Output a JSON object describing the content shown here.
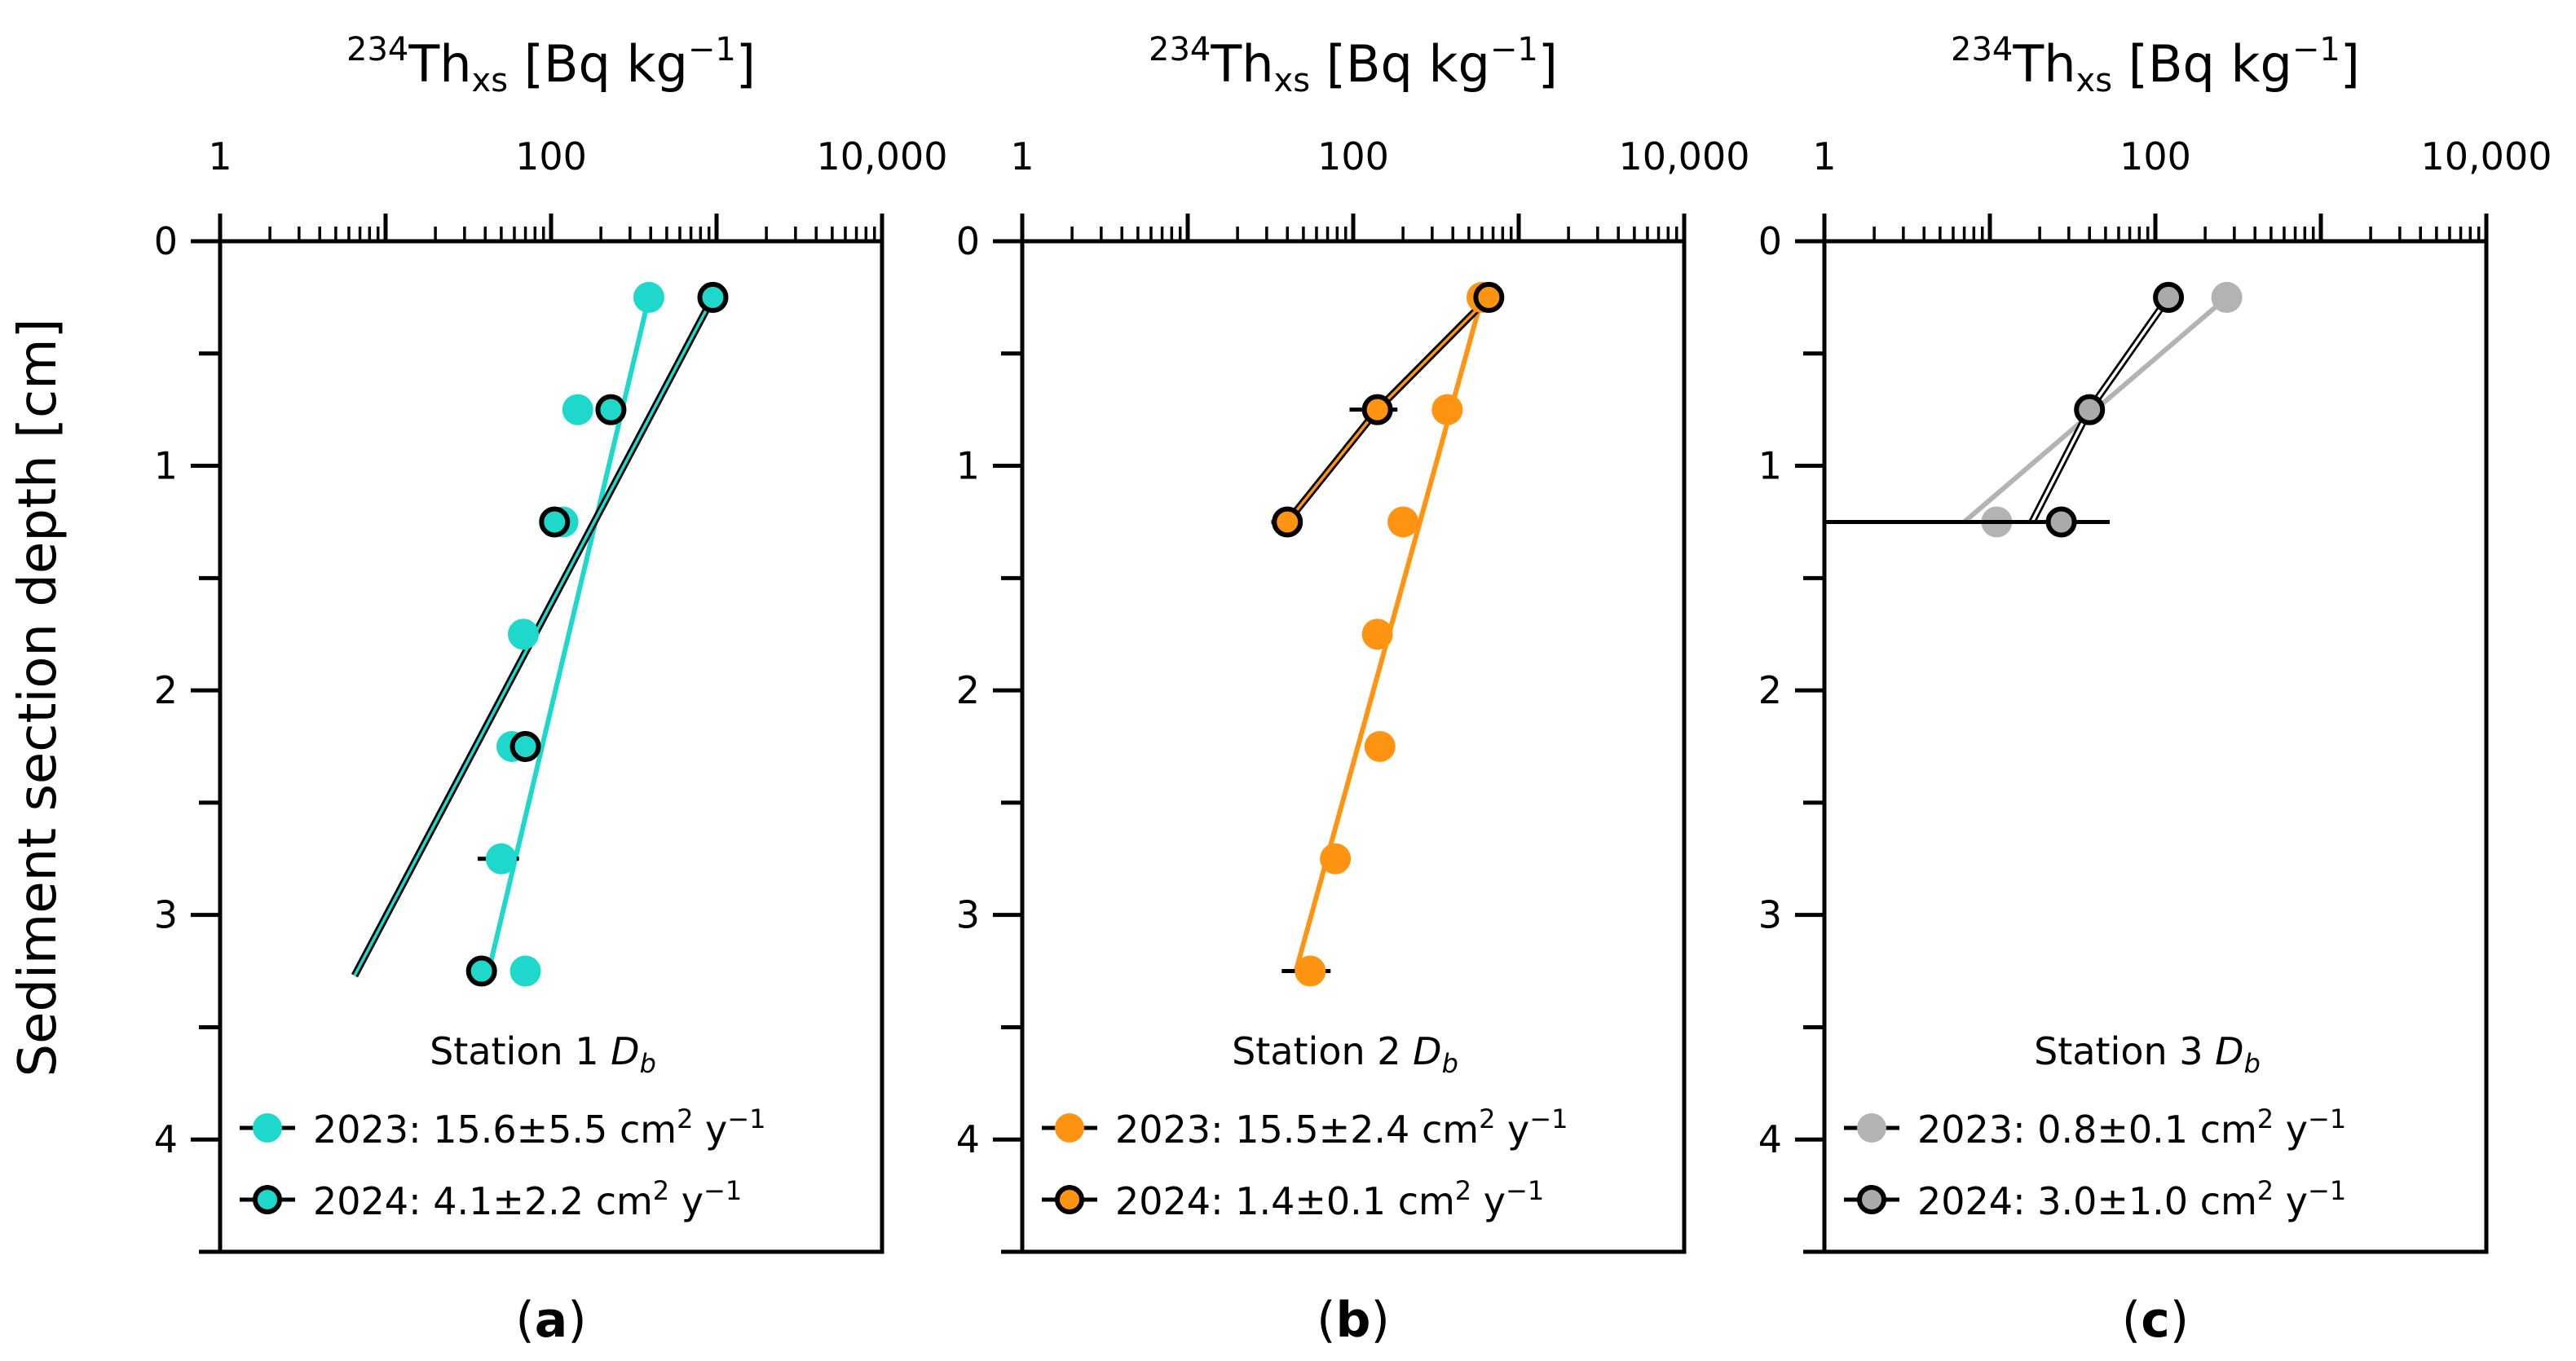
{
  "figure": {
    "ylabel": "Sediment section depth [cm]",
    "xlabel": {
      "iso": "234",
      "symbol": "Th",
      "sub": "xs",
      "unit_a": " [Bq kg",
      "unit_exp": "−1",
      "unit_b": "]"
    },
    "panel_labels": [
      {
        "open": "(",
        "letter": "a",
        "close": ")"
      },
      {
        "open": "(",
        "letter": "b",
        "close": ")"
      },
      {
        "open": "(",
        "letter": "c",
        "close": ")"
      }
    ]
  },
  "chart_data": [
    {
      "type": "scatter",
      "panel": "a",
      "x_scale": "log",
      "xlim": [
        1,
        10000
      ],
      "ylim": [
        4.5,
        0
      ],
      "x_tick_labels": [
        "1",
        "100",
        "10,000"
      ],
      "x_tick_values": [
        1,
        100,
        10000
      ],
      "y_tick_labels": [
        "0",
        "1",
        "2",
        "3",
        "4"
      ],
      "y_tick_values": [
        0,
        1,
        2,
        3,
        4
      ],
      "legend": {
        "title": "Station 1",
        "title_sym": "D",
        "title_sub": "b",
        "position": "lower center"
      },
      "series": [
        {
          "name": "2023",
          "label_value": "15.6±5.5",
          "label_unit": "cm",
          "label_unit_exp": "2",
          "label_unit2": "y",
          "label_unit2_exp": "−1",
          "color": "#1ed8cc",
          "edge": "#1ed8cc",
          "line_color": "#1ed8cc",
          "line_edge": "#1ed8cc",
          "points": [
            {
              "x": 390,
              "y": 0.25,
              "xerr": 0
            },
            {
              "x": 145,
              "y": 0.75,
              "xerr": 0
            },
            {
              "x": 118,
              "y": 1.25,
              "xerr": 0
            },
            {
              "x": 68,
              "y": 1.75,
              "xerr": 12
            },
            {
              "x": 58,
              "y": 2.25,
              "xerr": 0
            },
            {
              "x": 50,
              "y": 2.75,
              "xerr": 14
            },
            {
              "x": 70,
              "y": 3.25,
              "xerr": 0
            }
          ],
          "fit": [
            {
              "x": 390,
              "y": 0.25
            },
            {
              "x": 42,
              "y": 3.25
            }
          ]
        },
        {
          "name": "2024",
          "label_value": "4.1±2.2",
          "label_unit": "cm",
          "label_unit_exp": "2",
          "label_unit2": "y",
          "label_unit2_exp": "−1",
          "color": "#1ed8cc",
          "edge": "#000000",
          "line_color": "#1ed8cc",
          "line_edge": "#000000",
          "points": [
            {
              "x": 950,
              "y": 0.25,
              "xerr": 0
            },
            {
              "x": 230,
              "y": 0.75,
              "xerr": 0
            },
            {
              "x": 105,
              "y": 1.25,
              "xerr": 0
            },
            {
              "x": 70,
              "y": 2.25,
              "xerr": 0
            },
            {
              "x": 38,
              "y": 3.25,
              "xerr": 6
            }
          ],
          "fit": [
            {
              "x": 950,
              "y": 0.25
            },
            {
              "x": 6.5,
              "y": 3.27
            }
          ]
        }
      ]
    },
    {
      "type": "scatter",
      "panel": "b",
      "x_scale": "log",
      "xlim": [
        1,
        10000
      ],
      "ylim": [
        4.5,
        0
      ],
      "x_tick_labels": [
        "1",
        "100",
        "10,000"
      ],
      "x_tick_values": [
        1,
        100,
        10000
      ],
      "y_tick_labels": [
        "0",
        "1",
        "2",
        "3",
        "4"
      ],
      "y_tick_values": [
        0,
        1,
        2,
        3,
        4
      ],
      "legend": {
        "title": "Station 2",
        "title_sym": "D",
        "title_sub": "b",
        "position": "lower center"
      },
      "series": [
        {
          "name": "2023",
          "label_value": "15.5±2.4",
          "label_unit": "cm",
          "label_unit_exp": "2",
          "label_unit2": "y",
          "label_unit2_exp": "−1",
          "color": "#ff9412",
          "edge": "#ff9412",
          "line_color": "#ff9412",
          "line_edge": "#ff9412",
          "points": [
            {
              "x": 600,
              "y": 0.25,
              "xerr": 0
            },
            {
              "x": 370,
              "y": 0.75,
              "xerr": 0
            },
            {
              "x": 200,
              "y": 1.25,
              "xerr": 0
            },
            {
              "x": 140,
              "y": 1.75,
              "xerr": 0
            },
            {
              "x": 145,
              "y": 2.25,
              "xerr": 15
            },
            {
              "x": 78,
              "y": 2.75,
              "xerr": 10
            },
            {
              "x": 55,
              "y": 3.25,
              "xerr": 18
            }
          ],
          "fit": [
            {
              "x": 600,
              "y": 0.25
            },
            {
              "x": 45,
              "y": 3.25
            }
          ]
        },
        {
          "name": "2024",
          "label_value": "1.4±0.1",
          "label_unit": "cm",
          "label_unit_exp": "2",
          "label_unit2": "y",
          "label_unit2_exp": "−1",
          "color": "#ff9412",
          "edge": "#000000",
          "line_color": "#ff9412",
          "line_edge": "#000000",
          "points": [
            {
              "x": 660,
              "y": 0.25,
              "xerr": 0
            },
            {
              "x": 140,
              "y": 0.75,
              "xerr": 45
            },
            {
              "x": 40,
              "y": 1.25,
              "xerr": 8
            }
          ],
          "fit": [
            {
              "x": 660,
              "y": 0.25
            },
            {
              "x": 140,
              "y": 0.75
            },
            {
              "x": 40,
              "y": 1.25
            }
          ]
        }
      ]
    },
    {
      "type": "scatter",
      "panel": "c",
      "x_scale": "log",
      "xlim": [
        1,
        10000
      ],
      "ylim": [
        4.5,
        0
      ],
      "x_tick_labels": [
        "1",
        "100",
        "10,000"
      ],
      "x_tick_values": [
        1,
        100,
        10000
      ],
      "y_tick_labels": [
        "0",
        "1",
        "2",
        "3",
        "4"
      ],
      "y_tick_values": [
        0,
        1,
        2,
        3,
        4
      ],
      "legend": {
        "title": "Station 3",
        "title_sym": "D",
        "title_sub": "b",
        "position": "lower center"
      },
      "series": [
        {
          "name": "2023",
          "label_value": "0.8±0.1",
          "label_unit": "cm",
          "label_unit_exp": "2",
          "label_unit2": "y",
          "label_unit2_exp": "−1",
          "color": "#b3b3b3",
          "edge": "#b3b3b3",
          "line_color": "#b3b3b3",
          "line_edge": "#b3b3b3",
          "points": [
            {
              "x": 270,
              "y": 0.25,
              "xerr": 0
            },
            {
              "x": 40,
              "y": 0.75,
              "xerr": 0
            },
            {
              "x": 11,
              "y": 1.25,
              "xerr": 0
            }
          ],
          "fit": [
            {
              "x": 270,
              "y": 0.25
            },
            {
              "x": 7,
              "y": 1.25
            }
          ]
        },
        {
          "name": "2024",
          "label_value": "3.0±1.0",
          "label_unit": "cm",
          "label_unit_exp": "2",
          "label_unit2": "y",
          "label_unit2_exp": "−1",
          "color": "#aaaaaa",
          "edge": "#000000",
          "line_color": "#ffffff",
          "line_edge": "#000000",
          "points": [
            {
              "x": 120,
              "y": 0.25,
              "xerr": 0
            },
            {
              "x": 40,
              "y": 0.75,
              "xerr": 6
            },
            {
              "x": 27,
              "y": 1.25,
              "xerr": 26
            }
          ],
          "fit": [
            {
              "x": 120,
              "y": 0.25
            },
            {
              "x": 40,
              "y": 0.75
            },
            {
              "x": 18,
              "y": 1.25
            }
          ]
        }
      ]
    }
  ]
}
